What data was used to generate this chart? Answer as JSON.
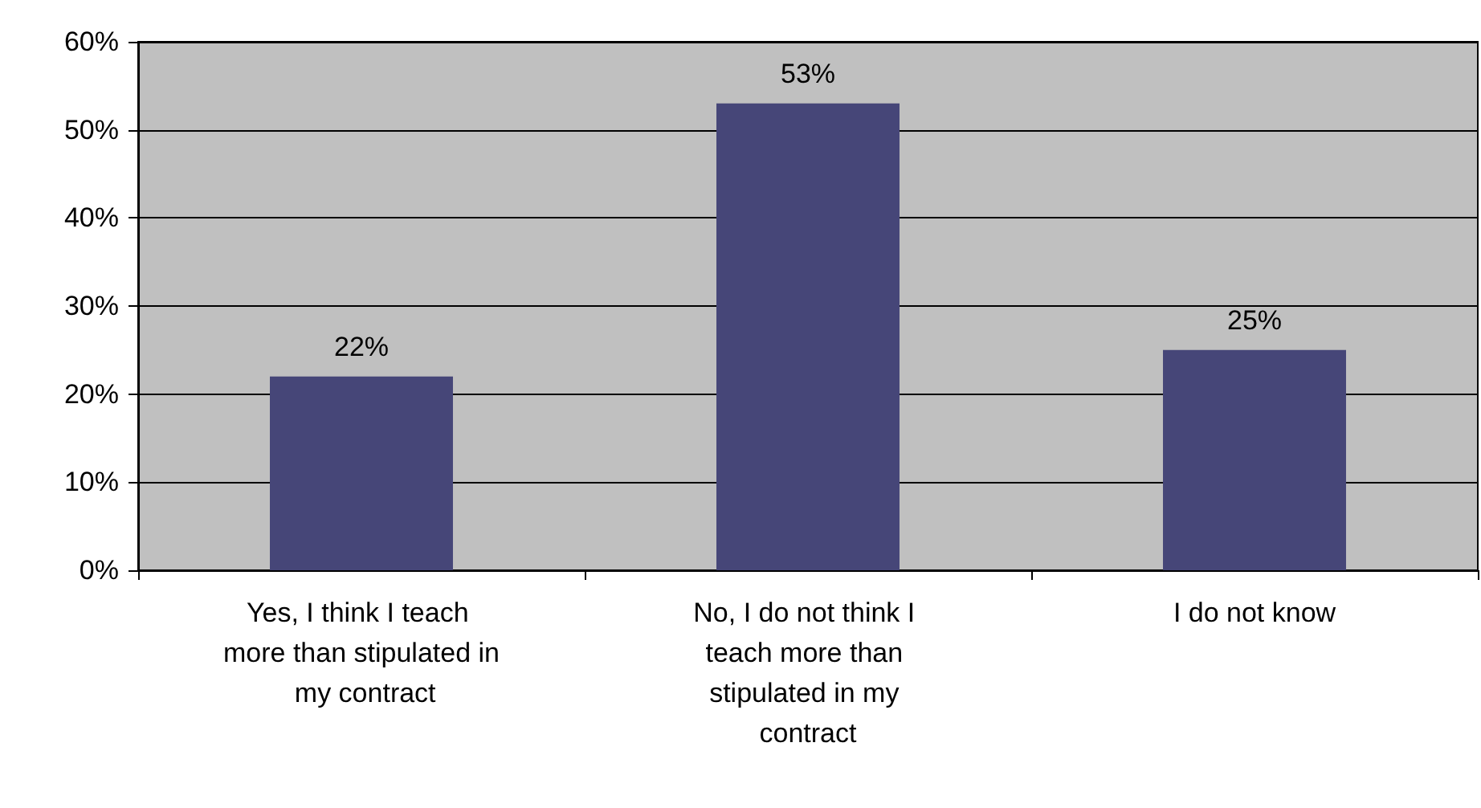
{
  "chart_data": {
    "type": "bar",
    "categories": [
      "Yes, I think I teach more than stipulated in my contract",
      "No, I do not think I teach more than stipulated in my contract",
      "I do not know"
    ],
    "values": [
      22,
      53,
      25
    ],
    "value_labels": [
      "22%",
      "53%",
      "25%"
    ],
    "color": "#464678",
    "ylim": [
      0,
      60
    ],
    "yticks": [
      {
        "value": 0,
        "label": "0%"
      },
      {
        "value": 10,
        "label": "10%"
      },
      {
        "value": 20,
        "label": "20%"
      },
      {
        "value": 30,
        "label": "30%"
      },
      {
        "value": 40,
        "label": "40%"
      },
      {
        "value": 50,
        "label": "50%"
      },
      {
        "value": 60,
        "label": "60%"
      }
    ],
    "grid": true
  }
}
